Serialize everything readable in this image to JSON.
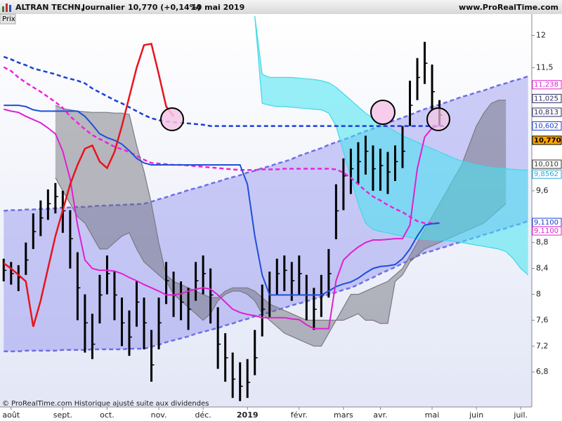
{
  "header": {
    "title": "ALTRAN TECHN.",
    "period": "Journalier",
    "quote": "10,770 (+0,14%)",
    "date": "10 mai 2019",
    "site": "www.ProRealTime.com",
    "panel": "Prix"
  },
  "footer": "© ProRealTime.com Historique ajusté suite aux dividendes",
  "chart_data": {
    "type": "ohlc",
    "grid": false,
    "ylim": [
      6.26,
      12.33
    ],
    "yticks": [
      {
        "value": 6.8,
        "label": "6,8"
      },
      {
        "value": 7.2,
        "label": "7,2"
      },
      {
        "value": 7.6,
        "label": "7,6"
      },
      8,
      {
        "value": 8.4,
        "label": "8,4"
      },
      {
        "value": 8.8,
        "label": "8,8"
      },
      {
        "value": 9.6,
        "label": "9,6"
      },
      {
        "value": 11.5,
        "label": "11,5"
      },
      12
    ],
    "categories": [
      null,
      "août",
      null,
      null,
      null,
      null,
      null,
      null,
      "sept.",
      null,
      null,
      null,
      null,
      null,
      "oct.",
      null,
      null,
      null,
      null,
      null,
      null,
      "nov.",
      null,
      null,
      null,
      null,
      null,
      "déc.",
      null,
      null,
      null,
      null,
      null,
      "2019",
      null,
      null,
      null,
      null,
      null,
      null,
      "févr.",
      null,
      null,
      null,
      null,
      null,
      "mars",
      null,
      null,
      null,
      null,
      "avr.",
      null,
      null,
      null,
      null,
      null,
      null,
      "mai",
      null,
      null,
      null,
      null,
      null,
      "juin",
      null,
      null,
      null,
      null,
      null,
      "juil.",
      null
    ],
    "price": {
      "color": "#000000",
      "high": [
        8.55,
        8.5,
        8.45,
        8.8,
        9.25,
        9.45,
        9.62,
        9.72,
        9.6,
        9.3,
        8.65,
        8.0,
        7.7,
        8.3,
        8.6,
        8.35,
        7.95,
        7.75,
        8.2,
        7.95,
        7.45,
        7.95,
        8.5,
        8.35,
        8.2,
        8.1,
        8.5,
        8.6,
        8.4,
        7.8,
        7.4,
        7.1,
        6.95,
        7.0,
        7.45,
        8.15,
        8.35,
        8.55,
        8.6,
        8.5,
        8.6,
        8.3,
        8.1,
        8.3,
        8.7,
        9.7,
        10.1,
        10.25,
        10.35,
        10.45,
        10.3,
        10.25,
        10.2,
        10.3,
        10.6,
        11.3,
        11.65,
        11.9,
        11.55,
        11.0,
        null,
        null,
        null,
        null,
        null,
        null,
        null,
        null,
        null,
        null,
        null,
        null
      ],
      "low": [
        8.2,
        8.15,
        8.05,
        8.3,
        8.7,
        8.9,
        9.15,
        9.25,
        8.95,
        8.4,
        7.6,
        7.1,
        7.0,
        7.55,
        8.0,
        7.6,
        7.2,
        7.05,
        7.5,
        7.15,
        6.65,
        7.15,
        7.85,
        7.65,
        7.6,
        7.45,
        7.9,
        8.0,
        7.55,
        6.85,
        6.65,
        6.4,
        6.35,
        6.4,
        6.75,
        7.35,
        7.65,
        8.0,
        8.05,
        7.9,
        8.0,
        7.6,
        7.45,
        7.65,
        7.95,
        8.85,
        9.3,
        9.55,
        9.7,
        9.85,
        9.6,
        9.6,
        9.55,
        9.75,
        9.95,
        10.6,
        11.0,
        11.25,
        10.85,
        10.6,
        null,
        null,
        null,
        null,
        null,
        null,
        null,
        null,
        null,
        null,
        null,
        null
      ],
      "close": [
        8.37,
        8.32,
        8.26,
        8.53,
        8.97,
        9.18,
        9.4,
        9.51,
        9.29,
        8.86,
        8.1,
        7.56,
        7.23,
        7.99,
        8.32,
        7.99,
        7.56,
        7.34,
        7.88,
        7.56,
        6.91,
        7.56,
        8.21,
        7.99,
        7.88,
        7.77,
        8.21,
        8.32,
        7.99,
        7.23,
        7.02,
        6.69,
        6.58,
        6.64,
        7.02,
        7.77,
        7.99,
        8.32,
        8.37,
        8.21,
        8.32,
        7.99,
        7.77,
        7.99,
        8.32,
        9.29,
        9.83,
        9.94,
        10.05,
        10.21,
        9.94,
        9.99,
        9.89,
        10.05,
        10.21,
        10.92,
        11.35,
        11.57,
        11.13,
        10.77,
        null,
        null,
        null,
        null,
        null,
        null,
        null,
        null,
        null,
        null,
        null,
        null
      ]
    },
    "bands": [
      {
        "color": "#6e6ee8",
        "fill": "rgba(110,110,235,0.33)",
        "dash": true,
        "upper": [
          9.29,
          9.3,
          9.3,
          9.31,
          9.31,
          9.32,
          9.32,
          9.33,
          9.34,
          9.34,
          9.35,
          9.35,
          9.36,
          9.37,
          9.37,
          9.38,
          9.38,
          9.39,
          9.39,
          9.4,
          9.43,
          9.47,
          9.5,
          9.54,
          9.57,
          9.61,
          9.64,
          9.67,
          9.71,
          9.74,
          9.78,
          9.81,
          9.84,
          9.88,
          9.91,
          9.95,
          9.98,
          10.02,
          10.05,
          10.09,
          10.14,
          10.18,
          10.22,
          10.26,
          10.31,
          10.35,
          10.39,
          10.43,
          10.48,
          10.52,
          10.56,
          10.6,
          10.65,
          10.69,
          10.73,
          10.77,
          10.82,
          10.86,
          10.9,
          10.93,
          10.97,
          11.01,
          11.05,
          11.08,
          11.12,
          11.15,
          11.19,
          11.23,
          11.26,
          11.3,
          11.33,
          11.37
        ],
        "lower": [
          7.12,
          7.12,
          7.12,
          7.13,
          7.13,
          7.13,
          7.13,
          7.13,
          7.14,
          7.14,
          7.14,
          7.14,
          7.15,
          7.15,
          7.15,
          7.15,
          7.15,
          7.16,
          7.16,
          7.16,
          7.19,
          7.22,
          7.26,
          7.29,
          7.32,
          7.35,
          7.39,
          7.42,
          7.45,
          7.48,
          7.52,
          7.55,
          7.59,
          7.62,
          7.66,
          7.69,
          7.72,
          7.76,
          7.79,
          7.83,
          7.86,
          7.89,
          7.93,
          7.96,
          8.0,
          8.03,
          8.07,
          8.1,
          8.15,
          8.21,
          8.26,
          8.32,
          8.37,
          8.42,
          8.48,
          8.53,
          8.59,
          8.64,
          8.67,
          8.71,
          8.74,
          8.78,
          8.81,
          8.85,
          8.88,
          8.92,
          8.95,
          8.99,
          9.02,
          9.06,
          9.09,
          9.13
        ]
      },
      {
        "color": "#7a7a82",
        "fill": "rgba(105,105,112,0.45)",
        "dash": false,
        "upper": [
          null,
          null,
          null,
          null,
          null,
          null,
          null,
          10.92,
          10.87,
          10.85,
          10.83,
          10.82,
          10.81,
          10.81,
          10.81,
          10.8,
          10.8,
          10.78,
          10.3,
          9.9,
          9.4,
          8.8,
          8.3,
          8.2,
          8.15,
          8.1,
          8.05,
          8.0,
          7.95,
          7.95,
          8.05,
          8.1,
          8.1,
          8.1,
          8.05,
          7.95,
          7.85,
          7.8,
          7.75,
          7.7,
          7.65,
          7.6,
          7.6,
          7.6,
          7.6,
          7.6,
          7.8,
          8.0,
          8.0,
          8.05,
          8.1,
          8.15,
          8.2,
          8.3,
          8.4,
          8.6,
          8.8,
          9.0,
          9.2,
          9.4,
          9.6,
          9.8,
          10.0,
          10.3,
          10.6,
          10.8,
          10.95,
          11.0,
          11.0,
          null,
          null,
          null
        ],
        "lower": [
          null,
          null,
          null,
          null,
          null,
          null,
          null,
          9.8,
          9.6,
          9.4,
          9.2,
          9.1,
          8.9,
          8.7,
          8.7,
          8.8,
          8.9,
          8.95,
          8.7,
          8.5,
          8.4,
          8.3,
          8.2,
          8.0,
          7.9,
          7.8,
          7.7,
          7.6,
          7.7,
          7.9,
          8.0,
          8.05,
          8.05,
          8.0,
          7.9,
          7.7,
          7.6,
          7.5,
          7.4,
          7.35,
          7.3,
          7.25,
          7.2,
          7.2,
          7.4,
          7.6,
          7.6,
          7.65,
          7.7,
          7.6,
          7.6,
          7.55,
          7.55,
          8.2,
          8.3,
          8.5,
          8.6,
          8.7,
          8.75,
          8.8,
          8.85,
          8.9,
          8.95,
          9.0,
          9.05,
          9.1,
          9.2,
          9.3,
          9.4,
          null,
          null,
          null
        ]
      },
      {
        "color": "#40d8e8",
        "fill": "rgba(70,228,240,0.55)",
        "dash": false,
        "upper": [
          null,
          null,
          null,
          null,
          null,
          null,
          null,
          null,
          null,
          null,
          null,
          null,
          null,
          null,
          null,
          null,
          null,
          null,
          null,
          null,
          null,
          null,
          null,
          null,
          null,
          null,
          null,
          null,
          null,
          null,
          null,
          null,
          null,
          null,
          12.3,
          11.4,
          11.35,
          11.35,
          11.35,
          11.35,
          11.34,
          11.33,
          11.32,
          11.3,
          11.27,
          11.2,
          11.1,
          11.0,
          10.9,
          10.8,
          10.72,
          10.65,
          10.58,
          10.52,
          10.45,
          10.4,
          10.35,
          10.3,
          10.25,
          10.2,
          10.15,
          10.1,
          10.06,
          10.03,
          10.0,
          9.98,
          9.96,
          9.95,
          9.94,
          9.93,
          9.92,
          9.92
        ],
        "lower": [
          null,
          null,
          null,
          null,
          null,
          null,
          null,
          null,
          null,
          null,
          null,
          null,
          null,
          null,
          null,
          null,
          null,
          null,
          null,
          null,
          null,
          null,
          null,
          null,
          null,
          null,
          null,
          null,
          null,
          null,
          null,
          null,
          null,
          null,
          12.3,
          10.95,
          10.92,
          10.9,
          10.9,
          10.89,
          10.88,
          10.87,
          10.86,
          10.85,
          10.8,
          10.6,
          10.2,
          9.8,
          9.4,
          9.1,
          9.0,
          8.97,
          8.95,
          8.92,
          8.9,
          8.88,
          8.86,
          8.85,
          8.84,
          8.84,
          8.83,
          8.82,
          8.8,
          8.78,
          8.76,
          8.74,
          8.72,
          8.7,
          8.66,
          8.55,
          8.4,
          8.3
        ]
      }
    ],
    "series": [
      {
        "color": "#1a3fd6",
        "width": 2.5,
        "dash": true,
        "values": [
          11.67,
          11.63,
          11.58,
          11.54,
          11.49,
          11.46,
          11.43,
          11.4,
          11.36,
          11.33,
          11.3,
          11.26,
          11.18,
          11.12,
          11.06,
          11.0,
          10.95,
          10.89,
          10.83,
          10.77,
          10.72,
          10.69,
          10.67,
          10.66,
          10.65,
          10.64,
          10.63,
          10.62,
          10.6,
          10.6,
          10.6,
          10.6,
          10.6,
          10.6,
          10.6,
          10.6,
          10.6,
          10.6,
          10.6,
          10.6,
          10.6,
          10.6,
          10.6,
          10.6,
          10.6,
          10.6,
          10.6,
          10.6,
          10.6,
          10.6,
          10.6,
          10.6,
          10.6,
          10.6,
          10.6,
          10.6,
          10.6,
          10.6,
          10.6,
          10.6,
          10.6,
          null,
          null,
          null,
          null,
          null,
          null,
          null,
          null,
          null,
          null,
          null
        ]
      },
      {
        "color": "#ee22dd",
        "width": 2.5,
        "dash": true,
        "values": [
          11.51,
          11.45,
          11.35,
          11.27,
          11.2,
          11.13,
          11.05,
          10.97,
          10.88,
          10.75,
          10.65,
          10.55,
          10.46,
          10.4,
          10.34,
          10.28,
          10.24,
          10.2,
          10.14,
          10.08,
          10.03,
          10.02,
          10.01,
          10.0,
          10.0,
          9.99,
          9.98,
          9.97,
          9.96,
          9.95,
          9.94,
          9.93,
          9.92,
          9.92,
          9.92,
          9.93,
          9.93,
          9.93,
          9.94,
          9.94,
          9.94,
          9.94,
          9.94,
          9.94,
          9.94,
          9.93,
          9.88,
          9.8,
          9.7,
          9.6,
          9.51,
          9.45,
          9.38,
          9.32,
          9.27,
          9.2,
          9.13,
          9.1,
          9.1,
          9.1,
          null,
          null,
          null,
          null,
          null,
          null,
          null,
          null,
          null,
          null,
          null,
          null
        ]
      },
      {
        "color": "#1f4fd8",
        "width": 2,
        "dash": false,
        "values": [
          10.92,
          10.92,
          10.92,
          10.9,
          10.85,
          10.83,
          10.83,
          10.83,
          10.83,
          10.83,
          10.83,
          10.75,
          10.62,
          10.48,
          10.42,
          10.38,
          10.32,
          10.22,
          10.1,
          10.03,
          10.0,
          10.0,
          10.0,
          10.0,
          10.0,
          10.0,
          10.0,
          10.0,
          10.0,
          10.0,
          10.0,
          10.0,
          10.0,
          9.7,
          8.9,
          8.3,
          7.99,
          7.99,
          7.99,
          7.99,
          7.99,
          7.99,
          7.99,
          7.99,
          8.05,
          8.12,
          8.16,
          8.19,
          8.25,
          8.33,
          8.4,
          8.43,
          8.44,
          8.46,
          8.55,
          8.7,
          8.9,
          9.07,
          9.09,
          9.1,
          null,
          null,
          null,
          null,
          null,
          null,
          null,
          null,
          null,
          null,
          null,
          null
        ]
      },
      {
        "color": "#e020d0",
        "width": 2,
        "dash": false,
        "values": [
          10.86,
          10.83,
          10.81,
          10.75,
          10.7,
          10.65,
          10.57,
          10.48,
          10.21,
          9.78,
          9.07,
          8.53,
          8.4,
          8.37,
          8.37,
          8.36,
          8.32,
          8.26,
          8.21,
          8.15,
          8.1,
          8.05,
          7.99,
          7.99,
          8.01,
          8.05,
          8.08,
          8.1,
          8.08,
          7.99,
          7.88,
          7.77,
          7.72,
          7.69,
          7.67,
          7.64,
          7.64,
          7.64,
          7.64,
          7.62,
          7.61,
          7.53,
          7.47,
          7.47,
          7.47,
          8.21,
          8.53,
          8.64,
          8.73,
          8.8,
          8.84,
          8.84,
          8.85,
          8.86,
          8.86,
          9.07,
          9.94,
          10.43,
          10.57,
          10.61,
          null,
          null,
          null,
          null,
          null,
          null,
          null,
          null,
          null,
          null,
          null,
          null
        ]
      },
      {
        "color": "#e8141c",
        "width": 2.5,
        "dash": false,
        "values": [
          8.48,
          8.4,
          8.3,
          8.2,
          7.5,
          7.9,
          8.4,
          8.9,
          9.3,
          9.7,
          10.0,
          10.25,
          10.3,
          10.05,
          9.95,
          10.2,
          10.6,
          11.05,
          11.5,
          11.85,
          11.87,
          11.4,
          10.9,
          10.75,
          null,
          null,
          null,
          null,
          null,
          null,
          null,
          null,
          null,
          null,
          null,
          null,
          null,
          null,
          null,
          null,
          null,
          null,
          null,
          null,
          null,
          null,
          null,
          null,
          null,
          null,
          null,
          null,
          null,
          null,
          null,
          null,
          null,
          null,
          null,
          null,
          null,
          null,
          null,
          null,
          null,
          null,
          null,
          null,
          null,
          null,
          null,
          null
        ]
      }
    ],
    "price_labels": [
      {
        "value": 11.238,
        "label": "11,238",
        "color": "#e020d0"
      },
      {
        "value": 11.025,
        "label": "11,025",
        "color": "#2a2a60"
      },
      {
        "value": 10.813,
        "label": "10,813",
        "color": "#2a2a60"
      },
      {
        "value": 10.602,
        "label": "10,602",
        "color": "#1a3fd6"
      },
      {
        "value": 10.01,
        "label": "10,010",
        "color": "#333333"
      },
      {
        "value": 9.8562,
        "label": "9,8562",
        "color": "#2aa8d8"
      },
      {
        "value": 9.11,
        "label": "9,1100",
        "color": "#1a3fd6"
      },
      {
        "value": 9.11,
        "label": "9,1100",
        "color": "#e020d0"
      },
      {
        "value": 10.77,
        "label": "10,770",
        "color": "#000000",
        "fill": "#ffa500"
      }
    ]
  }
}
